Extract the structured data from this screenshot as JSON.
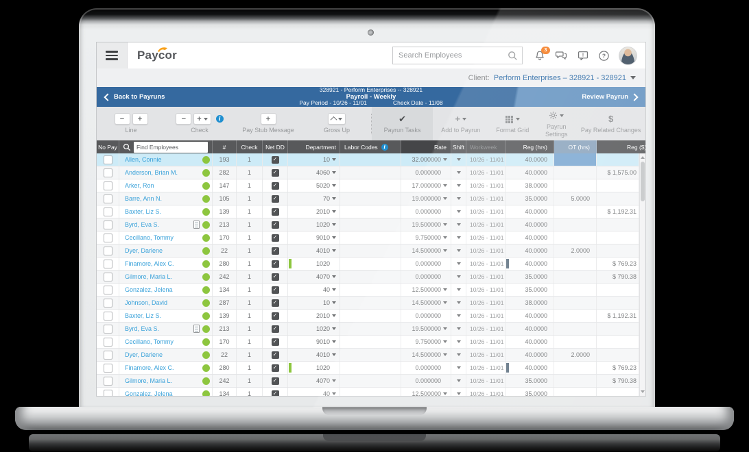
{
  "header": {
    "logo_text": "Paycor",
    "search_placeholder": "Search Employees",
    "notification_count": "3"
  },
  "client_bar": {
    "label": "Client:",
    "value": "Perform Enterprises – 328921 - 328921"
  },
  "payrun_bar": {
    "back_label": "Back to Payruns",
    "company_line": "328921 - Perform Enterprises -- 328921",
    "payroll_line": "Payroll - Weekly",
    "pay_period": "Pay Period - 10/26 - 11/01",
    "check_date": "Check Date - 11/08",
    "review_label": "Review Payrun"
  },
  "toolbar": {
    "line_label": "Line",
    "check_label": "Check",
    "pay_stub_label": "Pay Stub Message",
    "gross_up_label": "Gross Up",
    "payrun_tasks_label": "Payrun Tasks",
    "add_to_payrun_label": "Add to Payrun",
    "format_grid_label": "Format Grid",
    "payrun_settings_label": "Payrun Settings",
    "pay_related_label": "Pay Related Changes"
  },
  "icons": {
    "minus_glyph": "−",
    "plus_glyph": "+",
    "check_glyph": "✔",
    "dollar_glyph": "$",
    "info_glyph": "i",
    "netdd_check_glyph": "✓"
  },
  "table": {
    "headers": {
      "no_pay": "No Pay",
      "find_placeholder": "Find Employees",
      "num": "#",
      "check": "Check",
      "net_dd": "Net DD",
      "department": "Department",
      "labor_codes": "Labor Codes",
      "rate": "Rate",
      "shift": "Shift",
      "workweek": "Workweek",
      "reg_hrs": "Reg (hrs)",
      "ot_hrs": "OT (hrs)",
      "reg_amt": "Reg ($)"
    },
    "rows": [
      {
        "name": "Allen, Connie",
        "doc": false,
        "num": "193",
        "chk": "1",
        "dept": "10",
        "dcar": true,
        "dflag": false,
        "rate": "32.000000",
        "rcar": true,
        "week": "10/26 - 11/01",
        "reg": "40.0000",
        "rflag": false,
        "ot": "",
        "amt": "",
        "sel": true,
        "otsel": true
      },
      {
        "name": "Anderson, Brian M.",
        "doc": false,
        "num": "282",
        "chk": "1",
        "dept": "4060",
        "dcar": true,
        "dflag": false,
        "rate": "0.000000",
        "rcar": false,
        "week": "10/26 - 11/01",
        "reg": "40.0000",
        "rflag": false,
        "ot": "",
        "amt": "$ 1,575.00",
        "sel": false,
        "otsel": false
      },
      {
        "name": "Arker, Ron",
        "doc": false,
        "num": "147",
        "chk": "1",
        "dept": "5020",
        "dcar": true,
        "dflag": false,
        "rate": "17.000000",
        "rcar": true,
        "week": "10/26 - 11/01",
        "reg": "38.0000",
        "rflag": false,
        "ot": "",
        "amt": "",
        "sel": false,
        "otsel": false
      },
      {
        "name": "Barre, Ann N.",
        "doc": false,
        "num": "105",
        "chk": "1",
        "dept": "70",
        "dcar": true,
        "dflag": false,
        "rate": "19.000000",
        "rcar": true,
        "week": "10/26 - 11/01",
        "reg": "35.0000",
        "rflag": false,
        "ot": "5.0000",
        "amt": "",
        "sel": false,
        "otsel": false
      },
      {
        "name": "Baxter, Liz S.",
        "doc": false,
        "num": "139",
        "chk": "1",
        "dept": "2010",
        "dcar": true,
        "dflag": false,
        "rate": "0.000000",
        "rcar": false,
        "week": "10/26 - 11/01",
        "reg": "40.0000",
        "rflag": false,
        "ot": "",
        "amt": "$ 1,192.31",
        "sel": false,
        "otsel": false
      },
      {
        "name": "Byrd, Eva S.",
        "doc": true,
        "num": "213",
        "chk": "1",
        "dept": "1020",
        "dcar": true,
        "dflag": false,
        "rate": "19.500000",
        "rcar": true,
        "week": "10/26 - 11/01",
        "reg": "40.0000",
        "rflag": false,
        "ot": "",
        "amt": "",
        "sel": false,
        "otsel": false
      },
      {
        "name": "Cecillano, Tommy",
        "doc": false,
        "num": "170",
        "chk": "1",
        "dept": "9010",
        "dcar": true,
        "dflag": false,
        "rate": "9.750000",
        "rcar": true,
        "week": "10/26 - 11/01",
        "reg": "40.0000",
        "rflag": false,
        "ot": "",
        "amt": "",
        "sel": false,
        "otsel": false
      },
      {
        "name": "Dyer, Darlene",
        "doc": false,
        "num": "22",
        "chk": "1",
        "dept": "4010",
        "dcar": true,
        "dflag": false,
        "rate": "14.500000",
        "rcar": true,
        "week": "10/26 - 11/01",
        "reg": "40.0000",
        "rflag": false,
        "ot": "2.0000",
        "amt": "",
        "sel": false,
        "otsel": false
      },
      {
        "name": "Finamore, Alex C.",
        "doc": false,
        "num": "280",
        "chk": "1",
        "dept": "1020",
        "dcar": false,
        "dflag": true,
        "rate": "0.000000",
        "rcar": false,
        "week": "10/26 - 11/01",
        "reg": "40.0000",
        "rflag": true,
        "ot": "",
        "amt": "$ 769.23",
        "sel": false,
        "otsel": false
      },
      {
        "name": "Gilmore, Maria L.",
        "doc": false,
        "num": "242",
        "chk": "1",
        "dept": "4070",
        "dcar": true,
        "dflag": false,
        "rate": "0.000000",
        "rcar": false,
        "week": "10/26 - 11/01",
        "reg": "35.0000",
        "rflag": false,
        "ot": "",
        "amt": "$ 790.38",
        "sel": false,
        "otsel": false
      },
      {
        "name": "Gonzalez, Jelena",
        "doc": false,
        "num": "134",
        "chk": "1",
        "dept": "40",
        "dcar": true,
        "dflag": false,
        "rate": "12.500000",
        "rcar": true,
        "week": "10/26 - 11/01",
        "reg": "35.0000",
        "rflag": false,
        "ot": "",
        "amt": "",
        "sel": false,
        "otsel": false
      },
      {
        "name": "Johnson, David",
        "doc": false,
        "num": "287",
        "chk": "1",
        "dept": "10",
        "dcar": true,
        "dflag": false,
        "rate": "14.500000",
        "rcar": true,
        "week": "10/26 - 11/01",
        "reg": "38.0000",
        "rflag": false,
        "ot": "",
        "amt": "",
        "sel": false,
        "otsel": false
      },
      {
        "name": "Baxter, Liz S.",
        "doc": false,
        "num": "139",
        "chk": "1",
        "dept": "2010",
        "dcar": true,
        "dflag": false,
        "rate": "0.000000",
        "rcar": false,
        "week": "10/26 - 11/01",
        "reg": "40.0000",
        "rflag": false,
        "ot": "",
        "amt": "$ 1,192.31",
        "sel": false,
        "otsel": false
      },
      {
        "name": "Byrd, Eva S.",
        "doc": true,
        "num": "213",
        "chk": "1",
        "dept": "1020",
        "dcar": true,
        "dflag": false,
        "rate": "19.500000",
        "rcar": true,
        "week": "10/26 - 11/01",
        "reg": "40.0000",
        "rflag": false,
        "ot": "",
        "amt": "",
        "sel": false,
        "otsel": false
      },
      {
        "name": "Cecillano, Tommy",
        "doc": false,
        "num": "170",
        "chk": "1",
        "dept": "9010",
        "dcar": true,
        "dflag": false,
        "rate": "9.750000",
        "rcar": true,
        "week": "10/26 - 11/01",
        "reg": "40.0000",
        "rflag": false,
        "ot": "",
        "amt": "",
        "sel": false,
        "otsel": false
      },
      {
        "name": "Dyer, Darlene",
        "doc": false,
        "num": "22",
        "chk": "1",
        "dept": "4010",
        "dcar": true,
        "dflag": false,
        "rate": "14.500000",
        "rcar": true,
        "week": "10/26 - 11/01",
        "reg": "40.0000",
        "rflag": false,
        "ot": "2.0000",
        "amt": "",
        "sel": false,
        "otsel": false
      },
      {
        "name": "Finamore, Alex C.",
        "doc": false,
        "num": "280",
        "chk": "1",
        "dept": "1020",
        "dcar": false,
        "dflag": true,
        "rate": "0.000000",
        "rcar": false,
        "week": "10/26 - 11/01",
        "reg": "40.0000",
        "rflag": true,
        "ot": "",
        "amt": "$ 769.23",
        "sel": false,
        "otsel": false
      },
      {
        "name": "Gilmore, Maria L.",
        "doc": false,
        "num": "242",
        "chk": "1",
        "dept": "4070",
        "dcar": true,
        "dflag": false,
        "rate": "0.000000",
        "rcar": false,
        "week": "10/26 - 11/01",
        "reg": "35.0000",
        "rflag": false,
        "ot": "",
        "amt": "$ 790.38",
        "sel": false,
        "otsel": false
      },
      {
        "name": "Gonzalez, Jelena",
        "doc": false,
        "num": "134",
        "chk": "1",
        "dept": "40",
        "dcar": true,
        "dflag": false,
        "rate": "12.500000",
        "rcar": true,
        "week": "10/26 - 11/01",
        "reg": "35.0000",
        "rflag": false,
        "ot": "",
        "amt": "",
        "sel": false,
        "otsel": false
      }
    ]
  },
  "colors": {
    "brand_blue": "#35699f",
    "accent_orange": "#f58220",
    "link_blue": "#3aa2da",
    "status_green": "#8dc63f",
    "selected_row": "#cdebf7",
    "selected_cell": "#7da9d2",
    "grid_header_gray": "#58595b"
  }
}
